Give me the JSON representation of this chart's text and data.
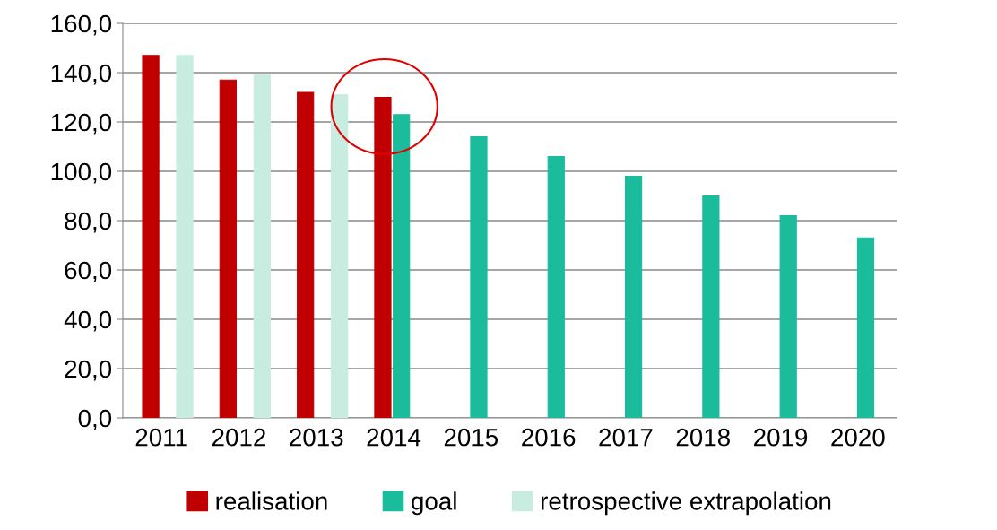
{
  "chart_data": {
    "type": "bar",
    "categories": [
      "2011",
      "2012",
      "2013",
      "2014",
      "2015",
      "2016",
      "2017",
      "2018",
      "2019",
      "2020"
    ],
    "series": [
      {
        "name": "realisation",
        "color": "#c00000",
        "values": [
          147,
          137,
          132,
          130,
          null,
          null,
          null,
          null,
          null,
          null
        ]
      },
      {
        "name": "goal",
        "color": "#1abc9c",
        "values": [
          null,
          null,
          null,
          123,
          114,
          106,
          98,
          90,
          82,
          73
        ]
      },
      {
        "name": "retrospective extrapolation",
        "color": "#c8ece0",
        "values": [
          147,
          139,
          131,
          null,
          null,
          null,
          null,
          null,
          null,
          null
        ]
      }
    ],
    "ylim": [
      0,
      160
    ],
    "yticks": [
      {
        "value": 0,
        "label": "0,0"
      },
      {
        "value": 20,
        "label": "20,0"
      },
      {
        "value": 40,
        "label": "40,0"
      },
      {
        "value": 60,
        "label": "60,0"
      },
      {
        "value": 80,
        "label": "80,0"
      },
      {
        "value": 100,
        "label": "100,0"
      },
      {
        "value": 120,
        "label": "120,0"
      },
      {
        "value": 140,
        "label": "140,0"
      },
      {
        "value": 160,
        "label": "160,0"
      }
    ],
    "grid": "y",
    "legend": "bottom"
  }
}
